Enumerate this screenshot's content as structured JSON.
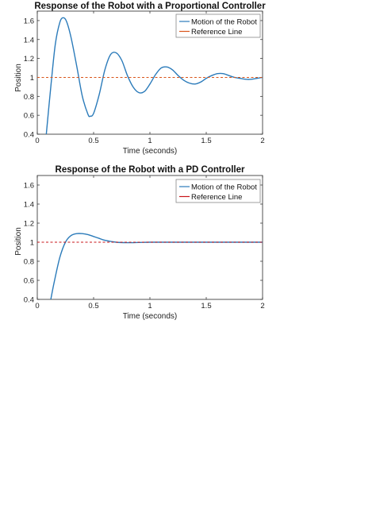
{
  "charts": [
    {
      "title": "Response of the Robot with a Proportional Controller",
      "xlabel": "Time (seconds)",
      "ylabel": "Position",
      "legend": [
        "Motion of the Robot",
        "Reference Line"
      ]
    },
    {
      "title": "Response of the Robot with a PD Controller",
      "xlabel": "Time (seconds)",
      "ylabel": "Position",
      "legend": [
        "Motion of the Robot",
        "Reference Line"
      ]
    }
  ],
  "chart_data": [
    {
      "type": "line",
      "title": "Response of the Robot with a Proportional Controller",
      "xlabel": "Time (seconds)",
      "ylabel": "Position",
      "xlim": [
        0,
        2
      ],
      "ylim": [
        0.4,
        1.7
      ],
      "xticks": [
        0,
        0.5,
        1,
        1.5,
        2
      ],
      "xtick_labels": [
        "0",
        "0.5",
        "1",
        "1.5",
        "2"
      ],
      "yticks": [
        0.4,
        0.6,
        0.8,
        1,
        1.2,
        1.4,
        1.6
      ],
      "ytick_labels": [
        "0.4",
        "0.6",
        "0.8",
        "1",
        "1.2",
        "1.4",
        "1.6"
      ],
      "grid": false,
      "legend_position": "top-right",
      "series": [
        {
          "name": "Motion of the Robot",
          "color": "#2b7bba",
          "style": "solid",
          "x": [
            0.08,
            0.12,
            0.16,
            0.2,
            0.23,
            0.26,
            0.3,
            0.35,
            0.4,
            0.45,
            0.47,
            0.5,
            0.55,
            0.6,
            0.65,
            0.7,
            0.75,
            0.8,
            0.85,
            0.9,
            0.95,
            1.0,
            1.05,
            1.1,
            1.15,
            1.2,
            1.25,
            1.3,
            1.35,
            1.4,
            1.45,
            1.5,
            1.55,
            1.6,
            1.65,
            1.7,
            1.75,
            1.8,
            1.85,
            1.9,
            1.95,
            2.0
          ],
          "y": [
            0.4,
            0.9,
            1.35,
            1.58,
            1.63,
            1.59,
            1.42,
            1.12,
            0.8,
            0.61,
            0.59,
            0.62,
            0.82,
            1.08,
            1.24,
            1.26,
            1.18,
            1.02,
            0.9,
            0.84,
            0.85,
            0.93,
            1.03,
            1.1,
            1.11,
            1.08,
            1.02,
            0.97,
            0.94,
            0.93,
            0.95,
            0.99,
            1.02,
            1.04,
            1.04,
            1.02,
            1.0,
            0.99,
            0.98,
            0.98,
            0.99,
            1.0
          ]
        },
        {
          "name": "Reference Line",
          "color": "#d9541a",
          "style": "dashed",
          "x": [
            0,
            2
          ],
          "y": [
            1,
            1
          ]
        }
      ]
    },
    {
      "type": "line",
      "title": "Response of the Robot with a PD Controller",
      "xlabel": "Time (seconds)",
      "ylabel": "Position",
      "xlim": [
        0,
        2
      ],
      "ylim": [
        0.4,
        1.7
      ],
      "xticks": [
        0,
        0.5,
        1,
        1.5,
        2
      ],
      "xtick_labels": [
        "0",
        "0.5",
        "1",
        "1.5",
        "2"
      ],
      "yticks": [
        0.4,
        0.6,
        0.8,
        1,
        1.2,
        1.4,
        1.6
      ],
      "ytick_labels": [
        "0.4",
        "0.6",
        "0.8",
        "1",
        "1.2",
        "1.4",
        "1.6"
      ],
      "grid": false,
      "legend_position": "top-right",
      "series": [
        {
          "name": "Motion of the Robot",
          "color": "#2b7bba",
          "style": "solid",
          "x": [
            0.12,
            0.15,
            0.2,
            0.25,
            0.3,
            0.35,
            0.4,
            0.45,
            0.5,
            0.55,
            0.6,
            0.7,
            0.8,
            0.9,
            1.0,
            1.2,
            1.5,
            2.0
          ],
          "y": [
            0.4,
            0.58,
            0.84,
            1.0,
            1.07,
            1.09,
            1.09,
            1.08,
            1.06,
            1.04,
            1.02,
            1.0,
            0.995,
            0.997,
            1.0,
            1.0,
            1.0,
            1.0
          ]
        },
        {
          "name": "Reference Line",
          "color": "#c8151a",
          "style": "dashed",
          "x": [
            0,
            2
          ],
          "y": [
            1,
            1
          ]
        }
      ]
    }
  ]
}
